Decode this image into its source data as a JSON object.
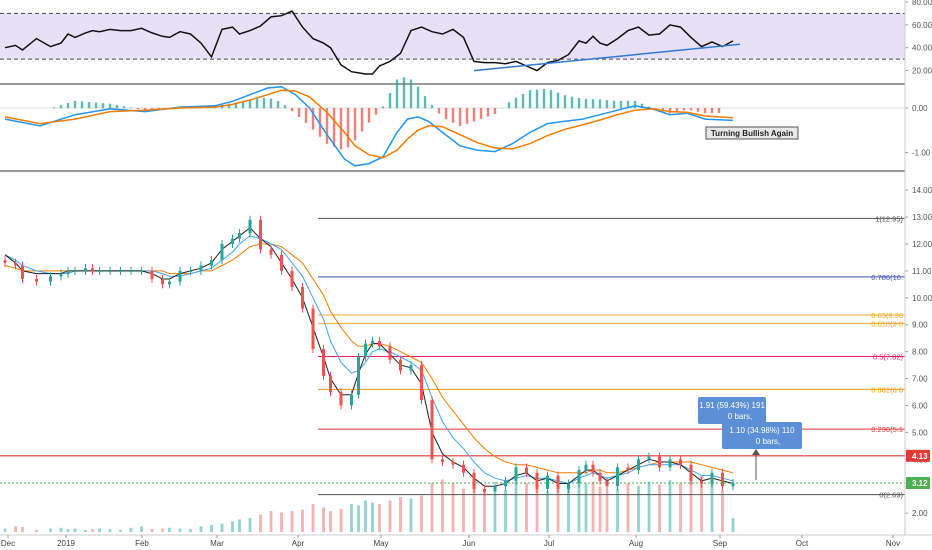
{
  "chart_data": [
    {
      "panel": "rsi",
      "type": "line",
      "ylim": [
        10,
        80
      ],
      "yticks": [
        "80.00",
        "60.00",
        "40.00",
        "20.00"
      ],
      "band": [
        30,
        70
      ],
      "colors": {
        "line": "#111111",
        "band": "#e8e0f6",
        "trend": "#2e7bd6"
      },
      "x": [
        0,
        3,
        5,
        9,
        13,
        16,
        18,
        20,
        23,
        25,
        27,
        30,
        33,
        36,
        39,
        42,
        45,
        47,
        50,
        53,
        56,
        59,
        62,
        65,
        67,
        70,
        73,
        76,
        79,
        82,
        85,
        88,
        91,
        93,
        96,
        99,
        101,
        103,
        105,
        107,
        110,
        113,
        116,
        119,
        122,
        125,
        128,
        131,
        134,
        137,
        140,
        143,
        146,
        149,
        152,
        155,
        158,
        161,
        164,
        166,
        168,
        170,
        172,
        175,
        178,
        181,
        184,
        187,
        190,
        193,
        196,
        199,
        202,
        205,
        208
      ],
      "values": [
        40,
        42,
        38,
        48,
        41,
        44,
        52,
        49,
        53,
        55,
        54,
        56,
        55,
        55,
        57,
        53,
        50,
        49,
        54,
        52,
        44,
        32,
        56,
        58,
        52,
        55,
        59,
        67,
        68,
        72,
        58,
        48,
        44,
        40,
        25,
        19,
        18,
        17,
        17,
        24,
        28,
        35,
        55,
        58,
        54,
        52,
        56,
        49,
        28,
        27,
        27,
        26,
        28,
        24,
        20,
        27,
        29,
        34,
        46,
        44,
        50,
        44,
        42,
        48,
        55,
        58,
        51,
        52,
        60,
        58,
        49,
        41,
        45,
        41,
        46
      ],
      "trend": {
        "x": [
          134,
          210
        ],
        "y": [
          20,
          43
        ]
      }
    },
    {
      "panel": "macd",
      "type": "line",
      "ylim": [
        -1.35,
        0.45
      ],
      "yticks": [
        "0.00",
        "-1.00"
      ],
      "annotation": "Turning Bullish Again",
      "colors": {
        "macd": "#2196f3",
        "signal": "#f57c00",
        "hist_pos": "#26a69a",
        "hist_neg": "#ef5350"
      },
      "x": [
        0,
        10,
        20,
        30,
        40,
        50,
        60,
        65,
        70,
        75,
        79,
        83,
        87,
        92,
        97,
        100,
        104,
        108,
        112,
        115,
        118,
        121,
        125,
        130,
        135,
        140,
        145,
        150,
        155,
        160,
        165,
        170,
        175,
        180,
        185,
        190,
        195,
        200,
        208
      ],
      "macd": [
        -0.25,
        -0.4,
        -0.15,
        -0.02,
        -0.08,
        0.02,
        0.05,
        0.15,
        0.3,
        0.45,
        0.48,
        0.3,
        0.0,
        -0.6,
        -1.15,
        -1.3,
        -1.25,
        -1.1,
        -0.55,
        -0.25,
        -0.2,
        -0.3,
        -0.55,
        -0.85,
        -0.95,
        -0.98,
        -0.8,
        -0.55,
        -0.35,
        -0.3,
        -0.25,
        -0.15,
        -0.05,
        0.05,
        -0.02,
        -0.15,
        -0.12,
        -0.25,
        -0.28
      ],
      "signal": [
        -0.2,
        -0.35,
        -0.25,
        -0.08,
        -0.05,
        0.0,
        0.02,
        0.08,
        0.18,
        0.3,
        0.4,
        0.38,
        0.25,
        -0.1,
        -0.55,
        -0.85,
        -1.05,
        -1.12,
        -0.95,
        -0.7,
        -0.5,
        -0.4,
        -0.42,
        -0.6,
        -0.78,
        -0.9,
        -0.92,
        -0.8,
        -0.62,
        -0.48,
        -0.38,
        -0.27,
        -0.15,
        -0.05,
        -0.02,
        -0.08,
        -0.1,
        -0.18,
        -0.22
      ]
    },
    {
      "panel": "price",
      "type": "candlestick",
      "ylim": [
        1.3,
        14.6
      ],
      "yticks": [
        "14.00",
        "13.00",
        "12.00",
        "11.00",
        "10.00",
        "9.00",
        "8.00",
        "7.00",
        "6.00",
        "5.00",
        "4.00",
        "3.00",
        "2.00"
      ],
      "xlabels": [
        "Dec",
        "2019",
        "Feb",
        "Mar",
        "Apr",
        "May",
        "Jun",
        "Jul",
        "Aug",
        "Sep",
        "Oct",
        "Nov"
      ],
      "x": [
        0,
        3,
        5,
        9,
        13,
        16,
        18,
        20,
        23,
        25,
        27,
        30,
        33,
        36,
        39,
        42,
        45,
        47,
        50,
        53,
        56,
        59,
        62,
        65,
        67,
        70,
        73,
        76,
        79,
        82,
        85,
        88,
        91,
        93,
        96,
        99,
        101,
        103,
        105,
        107,
        110,
        113,
        116,
        119,
        122,
        125,
        128,
        131,
        134,
        137,
        140,
        143,
        146,
        149,
        152,
        155,
        158,
        161,
        164,
        166,
        168,
        170,
        172,
        175,
        178,
        181,
        184,
        187,
        190,
        193,
        196,
        199,
        202,
        205,
        208
      ],
      "close": [
        11.3,
        11.2,
        10.7,
        10.6,
        10.8,
        10.9,
        11.0,
        11.0,
        11.1,
        11.0,
        11.0,
        11.0,
        11.0,
        11.0,
        11.0,
        10.7,
        10.5,
        10.6,
        11.0,
        11.0,
        11.2,
        11.4,
        12.0,
        12.2,
        12.4,
        12.9,
        11.8,
        11.6,
        11.0,
        10.4,
        9.6,
        8.1,
        7.1,
        6.5,
        6.0,
        6.4,
        7.8,
        8.3,
        8.4,
        8.2,
        7.7,
        7.3,
        7.5,
        6.2,
        4.0,
        3.9,
        3.8,
        3.5,
        2.9,
        2.8,
        3.0,
        3.2,
        3.7,
        3.5,
        2.9,
        3.4,
        2.9,
        3.1,
        3.6,
        3.8,
        3.5,
        3.2,
        3.0,
        3.7,
        3.6,
        4.0,
        4.1,
        3.7,
        4.0,
        3.8,
        3.2,
        3.1,
        3.5,
        3.0,
        3.12
      ],
      "ma_fast": [
        11.6,
        11.3,
        11.0,
        10.9,
        10.9,
        10.9,
        11.0,
        11.0,
        11.0,
        11.0,
        11.0,
        11.0,
        11.0,
        11.0,
        11.0,
        10.9,
        10.7,
        10.7,
        10.9,
        11.0,
        11.1,
        11.3,
        11.8,
        12.1,
        12.3,
        12.6,
        12.2,
        11.9,
        11.3,
        10.7,
        10.0,
        8.9,
        7.8,
        7.0,
        6.4,
        6.4,
        7.2,
        7.9,
        8.3,
        8.3,
        7.9,
        7.5,
        7.4,
        6.8,
        5.0,
        4.2,
        3.9,
        3.7,
        3.3,
        3.0,
        3.0,
        3.1,
        3.4,
        3.5,
        3.2,
        3.3,
        3.1,
        3.1,
        3.4,
        3.6,
        3.6,
        3.4,
        3.2,
        3.4,
        3.6,
        3.8,
        4.0,
        3.9,
        3.9,
        3.8,
        3.5,
        3.2,
        3.3,
        3.2,
        3.1
      ],
      "ma_slow": [
        11.6,
        11.4,
        11.2,
        11.0,
        10.9,
        10.9,
        10.9,
        11.0,
        11.0,
        11.0,
        11.0,
        11.0,
        11.0,
        11.0,
        11.0,
        11.0,
        10.9,
        10.8,
        10.8,
        10.9,
        11.0,
        11.1,
        11.4,
        11.7,
        12.0,
        12.3,
        12.2,
        12.0,
        11.8,
        11.3,
        10.8,
        10.0,
        9.2,
        8.4,
        7.6,
        7.2,
        7.3,
        7.6,
        8.0,
        8.1,
        8.0,
        7.8,
        7.6,
        7.3,
        6.3,
        5.4,
        4.8,
        4.4,
        3.9,
        3.5,
        3.3,
        3.2,
        3.3,
        3.4,
        3.3,
        3.3,
        3.2,
        3.1,
        3.3,
        3.4,
        3.5,
        3.4,
        3.3,
        3.4,
        3.5,
        3.7,
        3.8,
        3.8,
        3.8,
        3.8,
        3.6,
        3.4,
        3.4,
        3.3,
        3.2
      ],
      "ma_long": [
        11.2,
        11.1,
        11.0,
        11.0,
        11.0,
        11.0,
        11.0,
        11.0,
        11.0,
        11.0,
        11.0,
        11.0,
        11.0,
        11.0,
        11.0,
        11.0,
        11.0,
        10.9,
        10.9,
        10.9,
        11.0,
        11.0,
        11.2,
        11.4,
        11.6,
        11.9,
        12.0,
        12.0,
        11.9,
        11.6,
        11.3,
        10.7,
        10.1,
        9.5,
        8.9,
        8.4,
        8.2,
        8.2,
        8.3,
        8.3,
        8.2,
        8.0,
        7.8,
        7.6,
        7.0,
        6.3,
        5.8,
        5.3,
        4.8,
        4.4,
        4.1,
        3.9,
        3.8,
        3.8,
        3.7,
        3.6,
        3.5,
        3.5,
        3.5,
        3.5,
        3.6,
        3.6,
        3.5,
        3.5,
        3.6,
        3.7,
        3.8,
        3.9,
        3.9,
        3.9,
        3.9,
        3.8,
        3.7,
        3.6,
        3.5
      ],
      "volume": [
        0.05,
        0.08,
        0.07,
        0.03,
        0.05,
        0.06,
        0.04,
        0.05,
        0.03,
        0.04,
        0.05,
        0.04,
        0.03,
        0.06,
        0.08,
        0.04,
        0.05,
        0.06,
        0.05,
        0.04,
        0.08,
        0.1,
        0.12,
        0.15,
        0.18,
        0.2,
        0.25,
        0.3,
        0.28,
        0.3,
        0.32,
        0.4,
        0.35,
        0.3,
        0.33,
        0.4,
        0.38,
        0.45,
        0.42,
        0.4,
        0.45,
        0.5,
        0.48,
        0.52,
        0.7,
        0.75,
        0.7,
        0.62,
        0.65,
        0.6,
        0.55,
        0.6,
        0.72,
        0.7,
        0.62,
        0.58,
        0.7,
        0.66,
        0.68,
        0.7,
        0.72,
        0.65,
        0.6,
        0.62,
        0.7,
        0.66,
        0.72,
        0.68,
        0.74,
        0.7,
        0.75,
        0.8,
        0.72,
        0.6,
        0.2
      ],
      "fib_levels": [
        {
          "label": "1(12.95)",
          "value": 12.95,
          "color": "#555555"
        },
        {
          "label": "0.786(10.",
          "value": 10.78,
          "color": "#3f51b5"
        },
        {
          "label": "0.65(9.36",
          "value": 9.36,
          "color": "#f9a825"
        },
        {
          "label": "0.618(9.0",
          "value": 9.05,
          "color": "#f9a825"
        },
        {
          "label": "0.5(7.82)",
          "value": 7.82,
          "color": "#e91e63"
        },
        {
          "label": "0.382(6.6",
          "value": 6.6,
          "color": "#ff9800"
        },
        {
          "label": "0.236(5.1",
          "value": 5.12,
          "color": "#e53935"
        },
        {
          "label": "0(2.69)",
          "value": 2.69,
          "color": "#555555"
        }
      ],
      "support_line": 4.13,
      "last_price": 3.12,
      "price_tags": [
        {
          "label": "4.13",
          "value": 4.13,
          "color": "#e53935"
        },
        {
          "label": "3.12",
          "value": 3.12,
          "color": "#4caf50"
        }
      ],
      "measure_labels": [
        {
          "line1": "1.91 (59.43%) 191",
          "line2": "0 bars,"
        },
        {
          "line1": "1.10 (34.98%) 110",
          "line2": "0 bars,"
        }
      ]
    }
  ]
}
